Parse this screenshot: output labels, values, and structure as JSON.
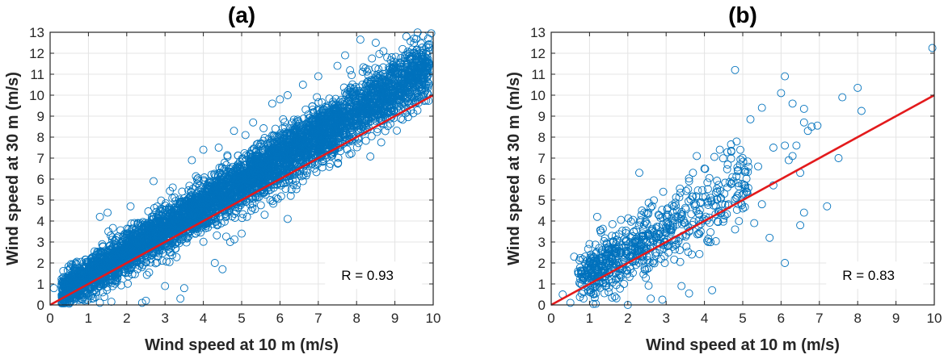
{
  "chart_data": [
    {
      "type": "scatter",
      "title": "(a)",
      "xlabel": "Wind speed at 10 m (m/s)",
      "ylabel": "Wind speed at 30 m (m/s)",
      "xlim": [
        0,
        10
      ],
      "ylim": [
        0,
        13
      ],
      "xticks": [
        "0",
        "1",
        "2",
        "3",
        "4",
        "5",
        "6",
        "7",
        "8",
        "9",
        "10"
      ],
      "yticks": [
        "0",
        "1",
        "2",
        "3",
        "4",
        "5",
        "6",
        "7",
        "8",
        "9",
        "10",
        "11",
        "12",
        "13"
      ],
      "grid": true,
      "marker_color": "#0072BD",
      "line_color": "#E31A1C",
      "reference_line": {
        "x": [
          0,
          10
        ],
        "y": [
          0,
          10
        ]
      },
      "annotation": "R = 0.93",
      "annotation_pos": {
        "x": 7.6,
        "y": 1.3
      },
      "density": {
        "description_points_shape": "dense band",
        "fit": {
          "slope": 1.12,
          "intercept": 0.25
        },
        "x_range": [
          0.3,
          9.9
        ],
        "n_points": 5500,
        "spread": 0.55
      },
      "points": [
        [
          9.95,
          12.95
        ],
        [
          9.3,
          12.8
        ],
        [
          8.1,
          12.65
        ],
        [
          8.5,
          12.5
        ],
        [
          9.9,
          11.5
        ],
        [
          8.4,
          11.75
        ],
        [
          7.7,
          11.9
        ],
        [
          9.5,
          12.7
        ],
        [
          8.7,
          12.1
        ],
        [
          9.2,
          12.2
        ],
        [
          7.5,
          11.4
        ],
        [
          8.3,
          9.8
        ],
        [
          8.6,
          8.9
        ],
        [
          8.2,
          9.5
        ],
        [
          8.0,
          9.1
        ],
        [
          7.9,
          8.7
        ],
        [
          7.4,
          7.8
        ],
        [
          7.6,
          8.6
        ],
        [
          8.9,
          9.4
        ],
        [
          9.1,
          11.0
        ],
        [
          6.9,
          6.5
        ],
        [
          6.6,
          5.9
        ],
        [
          6.3,
          5.5
        ],
        [
          5.9,
          5.1
        ],
        [
          6.2,
          4.1
        ],
        [
          5.6,
          4.3
        ],
        [
          4.3,
          2.0
        ],
        [
          5.0,
          3.4
        ],
        [
          4.7,
          3.0
        ],
        [
          3.5,
          0.8
        ],
        [
          3.4,
          0.3
        ],
        [
          2.5,
          0.2
        ],
        [
          2.4,
          0.1
        ],
        [
          1.3,
          0.1
        ],
        [
          1.6,
          0.15
        ],
        [
          2.1,
          2.1
        ],
        [
          3.0,
          0.9
        ],
        [
          4.5,
          1.7
        ],
        [
          3.7,
          6.9
        ],
        [
          4.0,
          7.4
        ],
        [
          4.4,
          7.5
        ],
        [
          4.8,
          8.3
        ],
        [
          2.7,
          5.9
        ],
        [
          2.1,
          4.7
        ],
        [
          1.5,
          4.4
        ],
        [
          1.3,
          4.2
        ],
        [
          3.2,
          5.6
        ],
        [
          5.1,
          8.1
        ],
        [
          5.3,
          8.7
        ],
        [
          5.8,
          9.6
        ],
        [
          6.0,
          9.8
        ],
        [
          6.2,
          10.0
        ],
        [
          6.6,
          10.5
        ],
        [
          7.0,
          10.9
        ],
        [
          0.3,
          0.9
        ],
        [
          0.5,
          0.6
        ],
        [
          0.1,
          0.8
        ],
        [
          1.1,
          0.3
        ],
        [
          0.8,
          0.5
        ],
        [
          7.2,
          7.9
        ]
      ]
    },
    {
      "type": "scatter",
      "title": "(b)",
      "xlabel": "Wind speed at 10 m (m/s)",
      "ylabel": "Wind speed at 30 m (m/s)",
      "xlim": [
        0,
        10
      ],
      "ylim": [
        0,
        13
      ],
      "xticks": [
        "0",
        "1",
        "2",
        "3",
        "4",
        "5",
        "6",
        "7",
        "8",
        "9",
        "10"
      ],
      "yticks": [
        "0",
        "1",
        "2",
        "3",
        "4",
        "5",
        "6",
        "7",
        "8",
        "9",
        "10",
        "11",
        "12",
        "13"
      ],
      "grid": true,
      "marker_color": "#0072BD",
      "line_color": "#E31A1C",
      "reference_line": {
        "x": [
          0,
          10
        ],
        "y": [
          0,
          10
        ]
      },
      "annotation": "R = 0.83",
      "annotation_pos": {
        "x": 7.6,
        "y": 1.3
      },
      "density": {
        "description_points_shape": "sparse cloud",
        "fit": {
          "slope": 1.05,
          "intercept": 0.45
        },
        "x_range": [
          0.3,
          6.0
        ],
        "n_points": 650,
        "spread": 0.75
      },
      "points": [
        [
          9.95,
          12.25
        ],
        [
          4.8,
          11.2
        ],
        [
          6.1,
          10.9
        ],
        [
          6.0,
          10.1
        ],
        [
          8.0,
          10.35
        ],
        [
          7.6,
          9.9
        ],
        [
          8.1,
          9.25
        ],
        [
          5.5,
          9.4
        ],
        [
          6.3,
          9.6
        ],
        [
          6.6,
          9.35
        ],
        [
          5.2,
          8.85
        ],
        [
          6.6,
          8.7
        ],
        [
          6.7,
          8.3
        ],
        [
          6.95,
          8.55
        ],
        [
          6.8,
          8.5
        ],
        [
          7.5,
          7.0
        ],
        [
          6.4,
          7.6
        ],
        [
          6.1,
          7.6
        ],
        [
          6.3,
          7.1
        ],
        [
          5.8,
          7.5
        ],
        [
          6.5,
          6.3
        ],
        [
          7.2,
          4.7
        ],
        [
          6.1,
          2.0
        ],
        [
          6.6,
          4.4
        ],
        [
          6.5,
          3.8
        ],
        [
          5.7,
          3.2
        ],
        [
          5.5,
          4.8
        ],
        [
          5.1,
          5.4
        ],
        [
          4.7,
          7.35
        ],
        [
          4.4,
          7.4
        ],
        [
          3.8,
          7.1
        ],
        [
          2.3,
          6.3
        ],
        [
          3.7,
          6.3
        ],
        [
          4.0,
          6.5
        ],
        [
          3.6,
          5.9
        ],
        [
          1.6,
          3.85
        ],
        [
          1.2,
          4.2
        ],
        [
          1.3,
          3.45
        ],
        [
          1.0,
          2.9
        ],
        [
          0.6,
          2.3
        ],
        [
          4.2,
          0.7
        ],
        [
          3.6,
          0.55
        ],
        [
          3.4,
          0.9
        ],
        [
          2.6,
          0.3
        ],
        [
          2.9,
          0.25
        ],
        [
          0.5,
          0.1
        ],
        [
          0.3,
          0.5
        ],
        [
          1.1,
          0.05
        ],
        [
          2.0,
          0.0
        ],
        [
          1.9,
          1.0
        ],
        [
          0.85,
          1.25
        ],
        [
          0.7,
          1.6
        ],
        [
          5.3,
          3.9
        ],
        [
          5.0,
          4.6
        ],
        [
          4.9,
          5.3
        ],
        [
          4.6,
          5.6
        ],
        [
          5.8,
          5.7
        ],
        [
          6.2,
          6.9
        ],
        [
          5.4,
          6.6
        ],
        [
          4.1,
          3.0
        ],
        [
          4.8,
          3.6
        ],
        [
          4.5,
          4.1
        ],
        [
          3.9,
          3.5
        ],
        [
          3.2,
          4.7
        ],
        [
          2.8,
          4.3
        ],
        [
          2.4,
          2.3
        ],
        [
          2.2,
          3.0
        ],
        [
          1.8,
          2.5
        ],
        [
          1.5,
          2.0
        ],
        [
          1.4,
          1.7
        ]
      ]
    }
  ]
}
